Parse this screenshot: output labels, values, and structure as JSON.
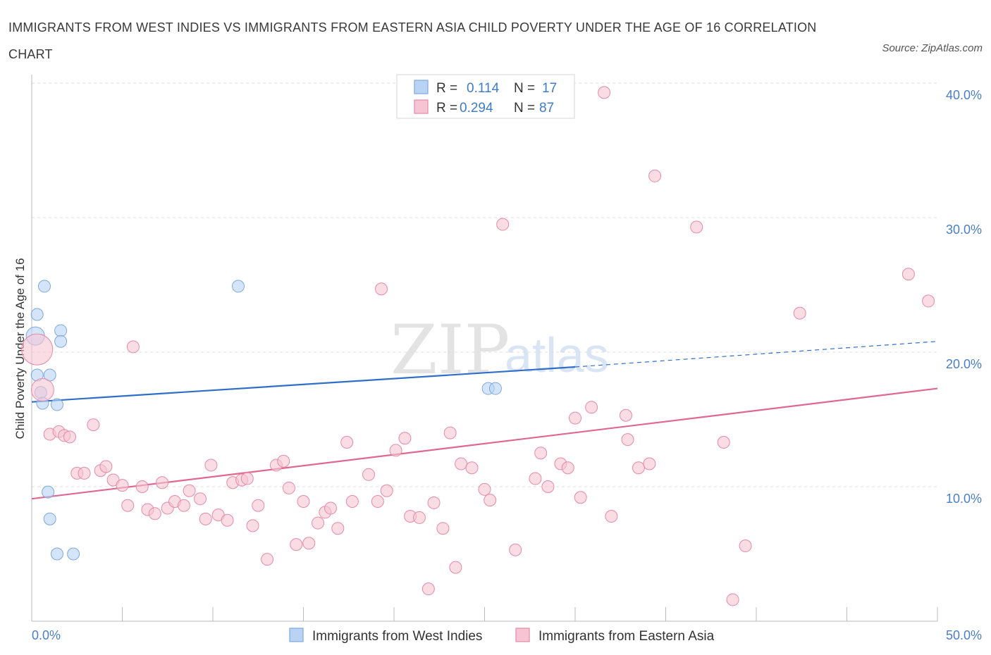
{
  "header": {
    "title": "IMMIGRANTS FROM WEST INDIES VS IMMIGRANTS FROM EASTERN ASIA CHILD POVERTY UNDER THE AGE OF 16 CORRELATION CHART",
    "source": "Source: ZipAtlas.com"
  },
  "watermark": {
    "zip": "ZIP",
    "atlas": "atlas"
  },
  "colors": {
    "blue_fill": "#b9d3f5",
    "blue_stroke": "#7fa8dc",
    "blue_line": "#2f6fc8",
    "pink_fill": "#f6c4d3",
    "pink_stroke": "#e58aa8",
    "pink_line": "#e0688f",
    "tick_text": "#4a7fc8",
    "grid": "#dcdcdc"
  },
  "stats": [
    {
      "r_label": "R =",
      "r_value": "0.114",
      "n_label": "N =",
      "n_value": "17"
    },
    {
      "r_label": "R =",
      "r_value": "0.294",
      "n_label": "N =",
      "n_value": "87"
    }
  ],
  "chart_data": {
    "type": "scatter",
    "title": "IMMIGRANTS FROM WEST INDIES VS IMMIGRANTS FROM EASTERN ASIA CHILD POVERTY UNDER THE AGE OF 16 CORRELATION CHART",
    "xlabel": "",
    "ylabel": "Child Poverty Under the Age of 16",
    "xlim": [
      0,
      50
    ],
    "ylim": [
      0,
      40
    ],
    "x_tick_labels": [
      {
        "value": 0,
        "label": "0.0%"
      },
      {
        "value": 50,
        "label": "50.0%"
      }
    ],
    "y_tick_labels": [
      {
        "value": 10,
        "label": "10.0%"
      },
      {
        "value": 20,
        "label": "20.0%"
      },
      {
        "value": 30,
        "label": "30.0%"
      },
      {
        "value": 40,
        "label": "40.0%"
      }
    ],
    "grid": true,
    "legend_position": "bottom",
    "series": [
      {
        "name": "Immigrants from West Indies",
        "color": "blue",
        "points": [
          [
            0.2,
            21.2
          ],
          [
            0.3,
            22.8
          ],
          [
            0.7,
            24.9
          ],
          [
            0.3,
            18.3
          ],
          [
            1.6,
            21.6
          ],
          [
            1.6,
            20.8
          ],
          [
            1.0,
            18.3
          ],
          [
            0.5,
            17.0
          ],
          [
            0.6,
            16.2
          ],
          [
            1.4,
            16.1
          ],
          [
            11.4,
            24.9
          ],
          [
            25.2,
            17.3
          ],
          [
            25.6,
            17.3
          ],
          [
            0.9,
            9.6
          ],
          [
            1.0,
            7.6
          ],
          [
            1.4,
            5.0
          ],
          [
            2.3,
            5.0
          ]
        ],
        "trend": {
          "x1": 0,
          "y1": 16.3,
          "x2": 30,
          "y2": 18.9,
          "dash_x2": 50,
          "dash_y2": 20.8
        }
      },
      {
        "name": "Immigrants from Eastern Asia",
        "color": "pink",
        "points": [
          [
            0.3,
            20.2
          ],
          [
            0.6,
            17.2
          ],
          [
            1.0,
            13.9
          ],
          [
            1.5,
            14.1
          ],
          [
            1.8,
            13.8
          ],
          [
            2.1,
            13.7
          ],
          [
            2.5,
            11.0
          ],
          [
            2.9,
            11.0
          ],
          [
            3.4,
            14.6
          ],
          [
            3.8,
            11.2
          ],
          [
            4.1,
            11.5
          ],
          [
            4.5,
            10.5
          ],
          [
            5.0,
            10.1
          ],
          [
            5.3,
            8.6
          ],
          [
            5.6,
            20.4
          ],
          [
            6.1,
            10.0
          ],
          [
            6.4,
            8.3
          ],
          [
            6.8,
            8.0
          ],
          [
            7.2,
            10.3
          ],
          [
            7.5,
            8.4
          ],
          [
            7.9,
            8.9
          ],
          [
            8.4,
            8.6
          ],
          [
            8.7,
            9.7
          ],
          [
            9.3,
            9.1
          ],
          [
            9.6,
            7.6
          ],
          [
            9.9,
            11.6
          ],
          [
            10.3,
            7.9
          ],
          [
            10.8,
            7.5
          ],
          [
            11.1,
            10.3
          ],
          [
            11.6,
            10.5
          ],
          [
            11.9,
            10.6
          ],
          [
            12.2,
            7.1
          ],
          [
            12.5,
            8.6
          ],
          [
            13.0,
            4.6
          ],
          [
            13.5,
            11.6
          ],
          [
            13.9,
            11.9
          ],
          [
            14.2,
            9.9
          ],
          [
            14.6,
            5.7
          ],
          [
            15.0,
            8.9
          ],
          [
            15.3,
            5.8
          ],
          [
            15.8,
            7.3
          ],
          [
            16.2,
            8.1
          ],
          [
            16.5,
            8.4
          ],
          [
            16.9,
            6.9
          ],
          [
            17.4,
            13.3
          ],
          [
            17.7,
            8.9
          ],
          [
            18.6,
            10.9
          ],
          [
            19.1,
            8.9
          ],
          [
            19.3,
            24.7
          ],
          [
            19.6,
            9.7
          ],
          [
            20.1,
            12.7
          ],
          [
            20.6,
            13.6
          ],
          [
            20.9,
            7.8
          ],
          [
            21.4,
            7.7
          ],
          [
            21.9,
            2.4
          ],
          [
            22.2,
            8.8
          ],
          [
            22.7,
            6.9
          ],
          [
            23.1,
            14.0
          ],
          [
            23.4,
            4.0
          ],
          [
            23.7,
            11.7
          ],
          [
            24.3,
            11.4
          ],
          [
            25.0,
            9.8
          ],
          [
            25.3,
            9.0
          ],
          [
            26.0,
            29.5
          ],
          [
            26.7,
            5.3
          ],
          [
            27.8,
            10.6
          ],
          [
            28.1,
            12.5
          ],
          [
            28.5,
            10.0
          ],
          [
            29.2,
            11.7
          ],
          [
            29.6,
            11.4
          ],
          [
            30.0,
            15.1
          ],
          [
            30.3,
            9.2
          ],
          [
            30.9,
            15.9
          ],
          [
            32.0,
            7.8
          ],
          [
            31.6,
            39.3
          ],
          [
            32.8,
            15.3
          ],
          [
            32.9,
            13.5
          ],
          [
            33.5,
            11.4
          ],
          [
            34.1,
            11.7
          ],
          [
            34.4,
            33.1
          ],
          [
            36.7,
            29.3
          ],
          [
            38.2,
            13.3
          ],
          [
            38.7,
            1.6
          ],
          [
            39.4,
            5.6
          ],
          [
            42.4,
            22.9
          ],
          [
            48.4,
            25.8
          ],
          [
            49.5,
            23.8
          ]
        ],
        "trend": {
          "x1": 0,
          "y1": 9.1,
          "x2": 50,
          "y2": 17.3
        }
      }
    ]
  },
  "legend": {
    "items": [
      {
        "label": "Immigrants from West Indies"
      },
      {
        "label": "Immigrants from Eastern Asia"
      }
    ]
  }
}
